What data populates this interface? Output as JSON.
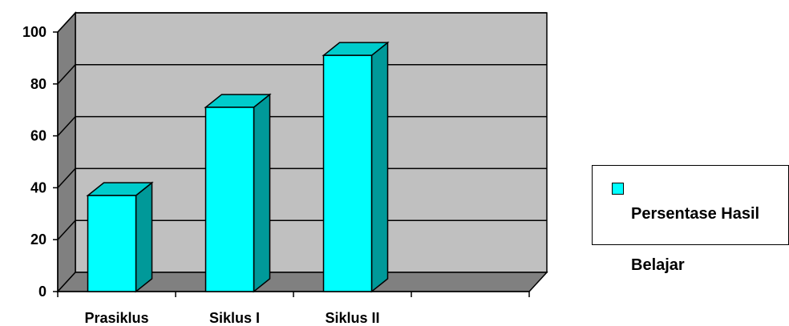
{
  "chart_data": {
    "type": "bar",
    "style": "3d-column",
    "categories": [
      "Prasiklus",
      "Siklus I",
      "Siklus II",
      ""
    ],
    "series": [
      {
        "name": "Persentase Hasil Belajar",
        "values": [
          37,
          71,
          91,
          null
        ],
        "color": "#00ffff"
      }
    ],
    "title": "",
    "xlabel": "",
    "ylabel": "",
    "ylim": [
      0,
      100
    ],
    "yticks": [
      0,
      20,
      40,
      60,
      80,
      100
    ],
    "grid": true,
    "legend_position": "right",
    "colors": {
      "plot_background": "#c0c0c0",
      "wall_side": "#808080",
      "floor": "#808080",
      "bar_front": "#00ffff",
      "bar_top": "#00cccc",
      "bar_side": "#009999"
    }
  },
  "legend": {
    "line1": "Persentase Hasil",
    "line2": "Belajar"
  }
}
